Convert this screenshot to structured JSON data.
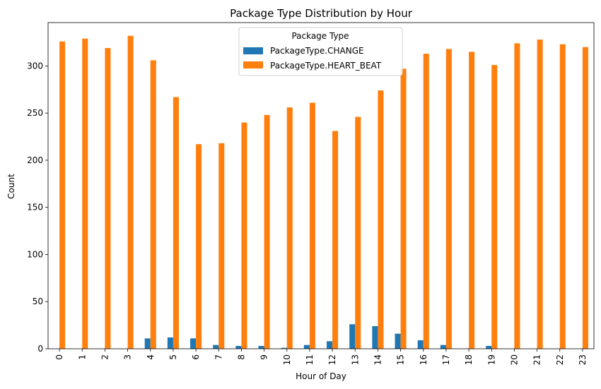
{
  "chart_data": {
    "type": "bar",
    "title": "Package Type Distribution by Hour",
    "xlabel": "Hour of Day",
    "ylabel": "Count",
    "ylim": [
      0,
      346
    ],
    "yticks": [
      0,
      50,
      100,
      150,
      200,
      250,
      300
    ],
    "categories": [
      "0",
      "1",
      "2",
      "3",
      "4",
      "5",
      "6",
      "7",
      "8",
      "9",
      "10",
      "11",
      "12",
      "13",
      "14",
      "15",
      "16",
      "17",
      "18",
      "19",
      "20",
      "21",
      "22",
      "23"
    ],
    "legend": {
      "title": "Package Type",
      "placement": "top-center"
    },
    "grid": false,
    "series": [
      {
        "name": "PackageType.CHANGE",
        "color": "#1f77b4",
        "values": [
          0,
          0,
          0,
          0,
          11,
          12,
          11,
          4,
          3,
          3,
          1,
          4,
          8,
          26,
          24,
          16,
          9,
          4,
          0,
          3,
          0,
          0,
          0,
          0
        ]
      },
      {
        "name": "PackageType.HEART_BEAT",
        "color": "#ff7f0e",
        "values": [
          326,
          329,
          319,
          332,
          306,
          267,
          217,
          218,
          240,
          248,
          256,
          261,
          231,
          246,
          274,
          297,
          313,
          318,
          315,
          301,
          324,
          328,
          323,
          320
        ]
      }
    ]
  }
}
